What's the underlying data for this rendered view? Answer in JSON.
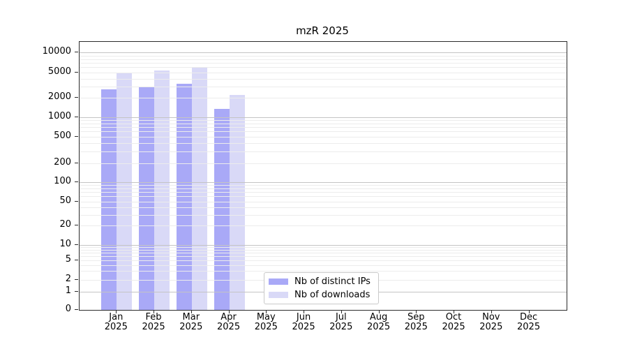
{
  "title": "mzR 2025",
  "colors": {
    "bar_distinct_ips": "#a9a9f7",
    "bar_downloads": "#d9d9f7",
    "grid_major": "#c4c4c4",
    "grid_minor": "#ececec",
    "axis": "#2b2b2b"
  },
  "chart_data": {
    "type": "bar",
    "title": "mzR 2025",
    "categories": [
      "Jan",
      "Feb",
      "Mar",
      "Apr",
      "May",
      "Jun",
      "Jul",
      "Aug",
      "Sep",
      "Oct",
      "Nov",
      "Dec"
    ],
    "category_year": "2025",
    "series": [
      {
        "name": "Nb of distinct IPs",
        "color": "#a9a9f7",
        "values": [
          2700,
          3000,
          3300,
          1350,
          null,
          null,
          null,
          null,
          null,
          null,
          null,
          null
        ]
      },
      {
        "name": "Nb of downloads",
        "color": "#d9d9f7",
        "values": [
          5000,
          5300,
          5850,
          2200,
          null,
          null,
          null,
          null,
          null,
          null,
          null,
          null
        ]
      }
    ],
    "yscale": "log-like",
    "yticks": [
      0,
      1,
      2,
      5,
      10,
      20,
      50,
      100,
      200,
      500,
      1000,
      2000,
      5000,
      10000
    ],
    "ylim": [
      0,
      15000
    ],
    "grid": "horizontal",
    "legend_position": "inside-bottom-center"
  }
}
